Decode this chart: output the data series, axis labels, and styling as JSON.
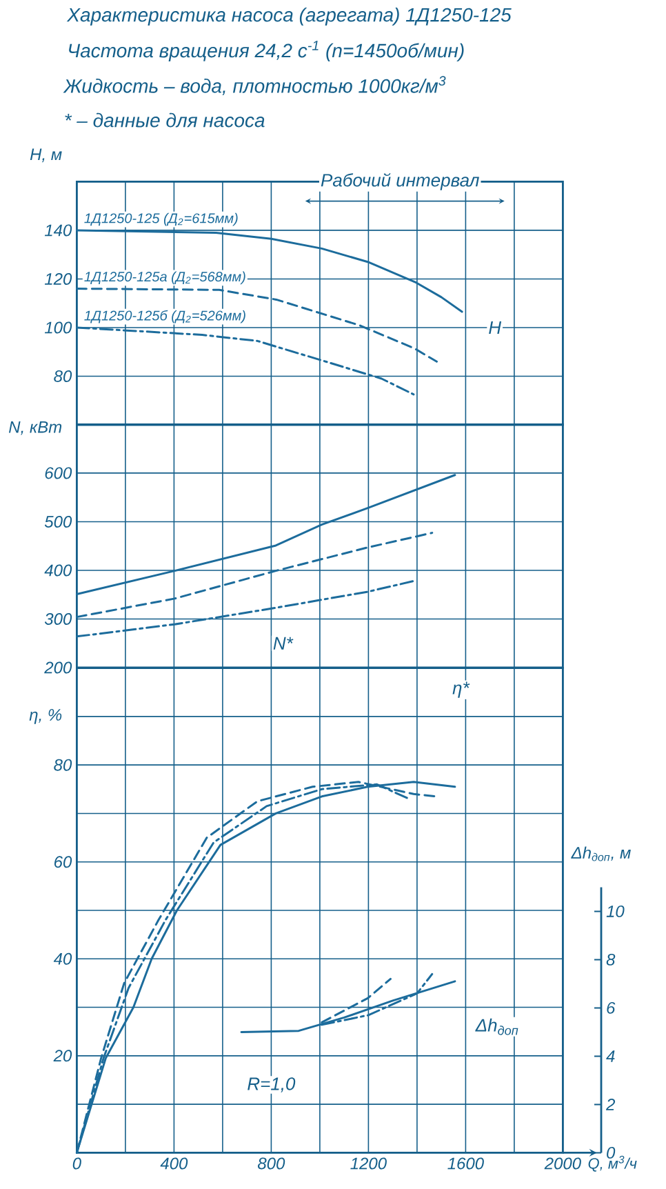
{
  "chart_data": [
    {
      "type": "line",
      "title": "Характеристика насоса (агрегата) 1Д1250-125",
      "subtitle": "Частота вращения 24,2 с$^{-1}$ (n=1450об/мин)",
      "ylabel": "H, м",
      "annotations": [
        "Жидкость – вода, плотностью 1000кг/м$^{3}$",
        "* – данные для насоса",
        "Рабочий интервал",
        "H"
      ],
      "xlim": [
        0,
        2000
      ],
      "xticks": [
        0,
        {
          "value": 200,
          "label": null
        },
        400,
        {
          "value": 600,
          "label": null
        },
        800,
        {
          "value": 1000,
          "label": null
        },
        1200,
        {
          "value": 1400,
          "label": null
        },
        1600,
        {
          "value": 1800,
          "label": null
        },
        2000
      ],
      "ylim": [
        60,
        160
      ],
      "yticks": [
        {
          "value": 60,
          "label": null
        },
        80,
        100,
        120,
        140,
        {
          "value": 160,
          "label": null
        }
      ],
      "grid": true,
      "tick_labels": "y",
      "series": [
        {
          "name": "1Д1250-125 (Д$_{2}$=615мм)",
          "color": "#1c6c9c",
          "line_style": "solid",
          "x": [
            0,
            573,
            800,
            1008,
            1197,
            1396,
            1500,
            1585
          ],
          "values": [
            140,
            139,
            136.5,
            132.5,
            127,
            118.5,
            112.5,
            106.5
          ]
        },
        {
          "name": "1Д1250-125а (Д$_{2}$=568мм)",
          "color": "#1c6c9c",
          "line_style": "dashed",
          "x": [
            0,
            586,
            821,
            1161,
            1388,
            1481
          ],
          "values": [
            116,
            115.5,
            111.5,
            101,
            91.5,
            86
          ]
        },
        {
          "name": "1Д1250-125б (Д$_{2}$=526мм)",
          "color": "#1c6c9c",
          "line_style": "dashdot",
          "x": [
            0,
            516,
            743,
            1008,
            1254,
            1386
          ],
          "values": [
            100,
            97,
            94.5,
            86.5,
            79,
            72.5
          ]
        }
      ]
    },
    {
      "type": "line",
      "ylabel": "N, кВт",
      "annotations": [
        "N*"
      ],
      "xlim": [
        0,
        2000
      ],
      "xticks": [
        0,
        {
          "value": 200,
          "label": null
        },
        400,
        {
          "value": 600,
          "label": null
        },
        800,
        {
          "value": 1000,
          "label": null
        },
        1200,
        {
          "value": 1400,
          "label": null
        },
        1600,
        {
          "value": 1800,
          "label": null
        },
        2000
      ],
      "ylim": [
        200,
        700
      ],
      "yticks": [
        200,
        300,
        400,
        500,
        600,
        {
          "value": 700,
          "label": null
        }
      ],
      "grid": true,
      "tick_labels": "y",
      "series": [
        {
          "color": "#1c6c9c",
          "line_style": "solid",
          "x": [
            0,
            403,
            819,
            1008,
            1197,
            1556
          ],
          "values": [
            351,
            399,
            451,
            494,
            528,
            596
          ]
        },
        {
          "color": "#1c6c9c",
          "line_style": "dashed",
          "x": [
            0,
            403,
            819,
            1197,
            1462
          ],
          "values": [
            304,
            342,
            399,
            447,
            477
          ]
        },
        {
          "color": "#1c6c9c",
          "line_style": "dashdot",
          "x": [
            0,
            403,
            819,
            1197,
            1386
          ],
          "values": [
            264,
            289,
            323,
            356,
            378
          ]
        }
      ]
    },
    {
      "type": "line",
      "ylabel": "η, %",
      "xlabel": "Q, м$^{3}$/ч",
      "y2label": "Δh$_{доп}$, м",
      "annotations": [
        "η*",
        "Δh$_{доп}$",
        "R=1,0"
      ],
      "xlim": [
        0,
        2000
      ],
      "xticks": [
        0,
        {
          "value": 200,
          "label": null
        },
        400,
        {
          "value": 600,
          "label": null
        },
        800,
        {
          "value": 1000,
          "label": null
        },
        1200,
        {
          "value": 1400,
          "label": null
        },
        1600,
        {
          "value": 1800,
          "label": null
        },
        2000
      ],
      "ylim": [
        0,
        100
      ],
      "yticks": [
        {
          "value": 0,
          "label": null
        },
        {
          "value": 10,
          "label": null
        },
        20,
        {
          "value": 30,
          "label": null
        },
        40,
        {
          "value": 50,
          "label": null
        },
        60,
        {
          "value": 70,
          "label": null
        },
        80,
        {
          "value": 90,
          "label": null
        },
        {
          "value": 100,
          "label": null
        }
      ],
      "y2lim": [
        0,
        11
      ],
      "y2ticks": [
        0,
        2,
        4,
        6,
        8,
        10
      ],
      "grid": true,
      "series": [
        {
          "color": "#1c6c9c",
          "line_style": "solid",
          "x": [
            0,
            119,
            233,
            308,
            412,
            591,
            819,
            1008,
            1197,
            1386,
            1556
          ],
          "values": [
            0,
            19.5,
            30,
            40,
            50,
            63.5,
            70,
            73.5,
            75.5,
            76.5,
            75.5
          ]
        },
        {
          "color": "#1c6c9c",
          "line_style": "dashed",
          "x": [
            0,
            100,
            195,
            336,
            535,
            743,
            970,
            1159,
            1386,
            1481
          ],
          "values": [
            0,
            19.5,
            35,
            48,
            65,
            72.5,
            75.5,
            76.5,
            74,
            73.5
          ]
        },
        {
          "color": "#1c6c9c",
          "line_style": "dashdot",
          "x": [
            0,
            110,
            213,
            365,
            563,
            781,
            1008,
            1235,
            1367
          ],
          "values": [
            0,
            19.5,
            34,
            48,
            64,
            71.5,
            75,
            76,
            73
          ]
        },
        {
          "color": "#1c6c9c",
          "line_style": "solid",
          "axis": "y2",
          "x": [
            677,
            913,
            1100,
            1300,
            1556
          ],
          "values": [
            5.0,
            5.05,
            5.6,
            6.3,
            7.1
          ]
        },
        {
          "color": "#1c6c9c",
          "line_style": "dashed",
          "axis": "y2",
          "x": [
            1008,
            1197,
            1291
          ],
          "values": [
            5.4,
            6.4,
            7.2
          ]
        },
        {
          "color": "#1c6c9c",
          "line_style": "dashdot",
          "axis": "y2",
          "x": [
            1008,
            1200,
            1400,
            1462
          ],
          "values": [
            5.3,
            5.7,
            6.6,
            7.4
          ]
        }
      ]
    }
  ]
}
